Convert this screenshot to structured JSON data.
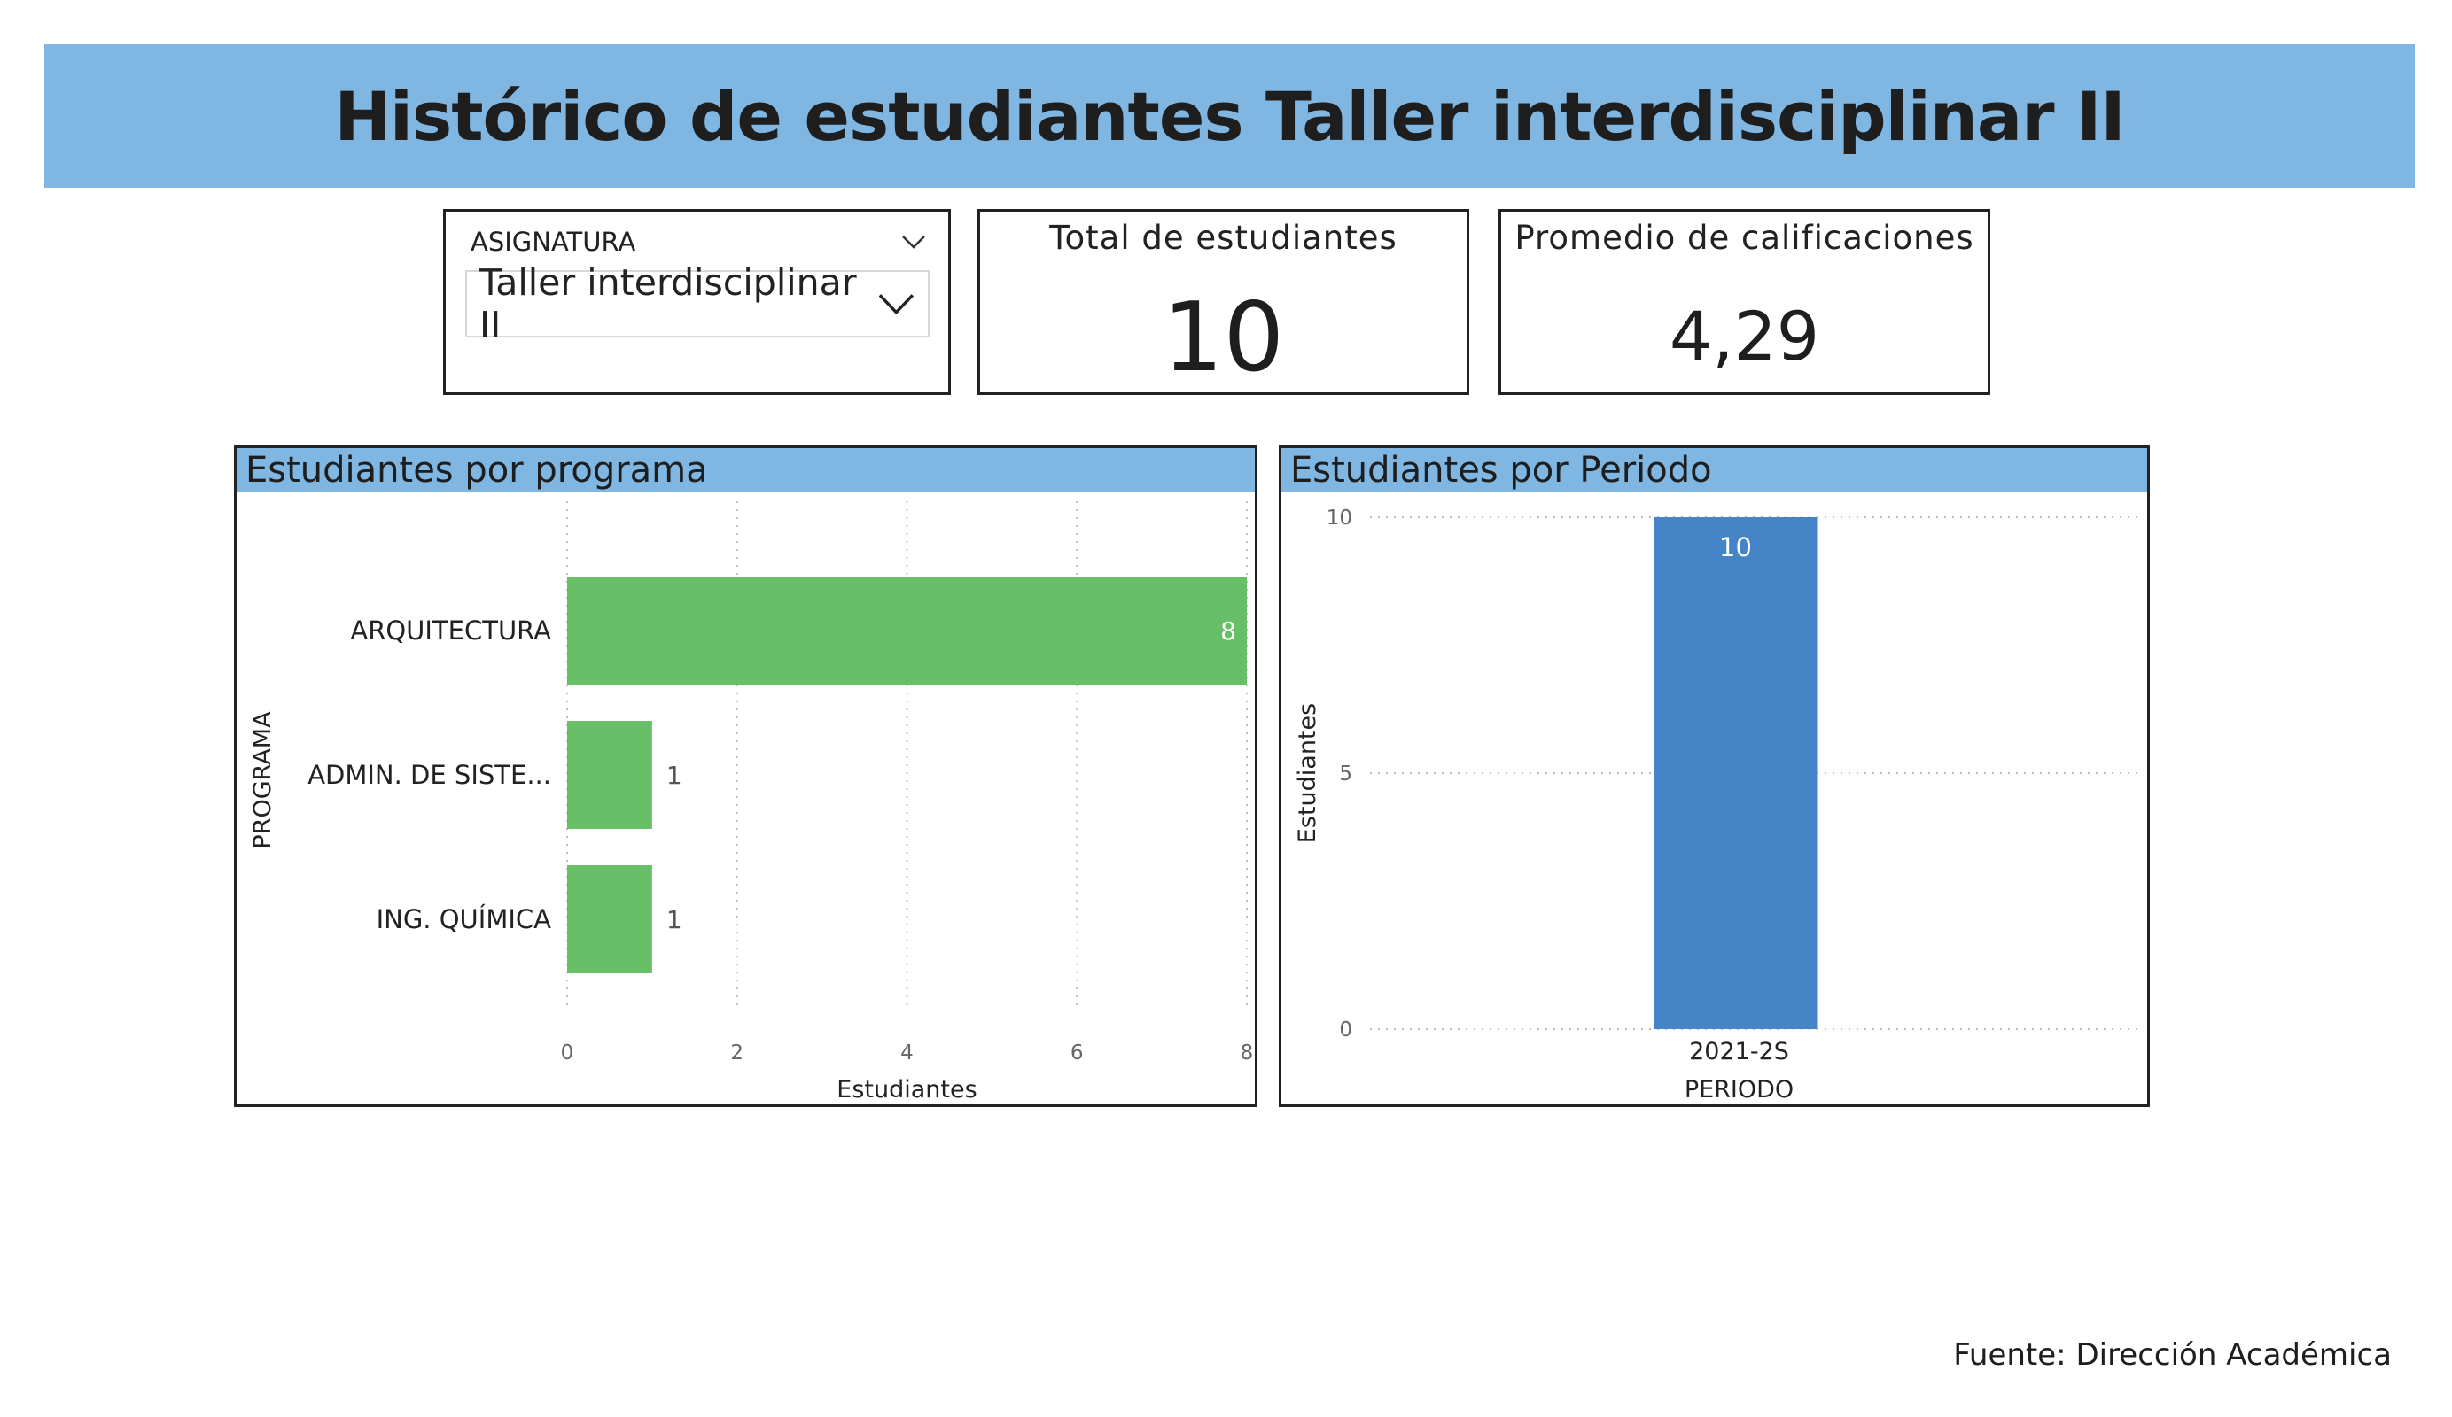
{
  "header": {
    "title": "Histórico de estudiantes Taller interdisciplinar II"
  },
  "slicer": {
    "label": "ASIGNATURA",
    "value": "Taller interdisciplinar II"
  },
  "kpis": {
    "total": {
      "label": "Total de estudiantes",
      "value": "10"
    },
    "average": {
      "label": "Promedio de calificaciones",
      "value": "4,29"
    }
  },
  "panels": {
    "programa": {
      "title": "Estudiantes por programa"
    },
    "periodo": {
      "title": "Estudiantes por Periodo"
    }
  },
  "chart_data": [
    {
      "type": "bar",
      "orientation": "horizontal",
      "title": "Estudiantes por programa",
      "categories": [
        "ARQUITECTURA",
        "ADMIN. DE SISTE...",
        "ING. QUÍMICA"
      ],
      "values": [
        8,
        1,
        1
      ],
      "data_labels": [
        "8",
        "1",
        "1"
      ],
      "xlabel": "Estudiantes",
      "ylabel": "PROGRAMA",
      "xlim": [
        0,
        8
      ],
      "xticks": [
        "0",
        "2",
        "4",
        "6",
        "8"
      ],
      "grid": "vertical-dotted",
      "color": "#67bf67"
    },
    {
      "type": "bar",
      "orientation": "vertical",
      "title": "Estudiantes por Periodo",
      "categories": [
        "2021-2S"
      ],
      "values": [
        10
      ],
      "data_labels": [
        "10"
      ],
      "xlabel": "PERIODO",
      "ylabel": "Estudiantes",
      "ylim": [
        0,
        10
      ],
      "yticks": [
        "0",
        "5",
        "10"
      ],
      "grid": "horizontal-dotted",
      "color": "#4584c6"
    }
  ],
  "footer": {
    "source": "Fuente: Dirección Académica"
  }
}
